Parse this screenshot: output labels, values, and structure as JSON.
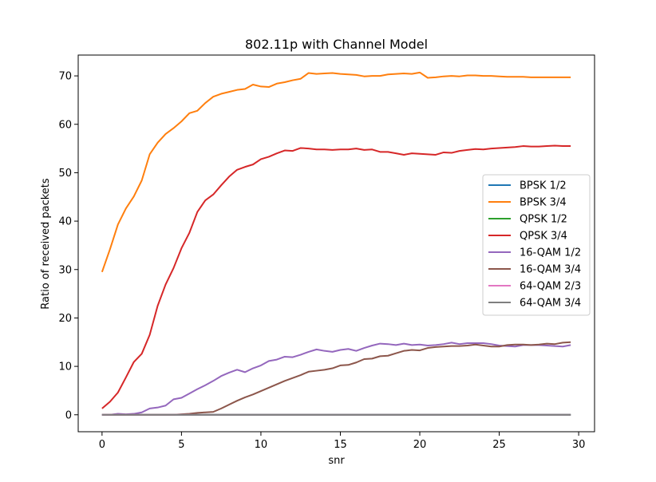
{
  "chart_data": {
    "type": "line",
    "title": "802.11p with Channel Model",
    "xlabel": "snr",
    "ylabel": "Ratio of received packets",
    "xlim": [
      -1.5,
      31
    ],
    "ylim": [
      -3.5,
      74.3
    ],
    "xticks": [
      0,
      5,
      10,
      15,
      20,
      25,
      30
    ],
    "yticks": [
      0,
      10,
      20,
      30,
      40,
      50,
      60,
      70
    ],
    "grid": false,
    "legend_position": "center-right",
    "x": [
      0,
      0.5,
      1,
      1.5,
      2,
      2.5,
      3,
      3.5,
      4,
      4.5,
      5,
      5.5,
      6,
      6.5,
      7,
      7.5,
      8,
      8.5,
      9,
      9.5,
      10,
      10.5,
      11,
      11.5,
      12,
      12.5,
      13,
      13.5,
      14,
      14.5,
      15,
      15.5,
      16,
      16.5,
      17,
      17.5,
      18,
      18.5,
      19,
      19.5,
      20,
      20.5,
      21,
      21.5,
      22,
      22.5,
      23,
      23.5,
      24,
      24.5,
      25,
      25.5,
      26,
      26.5,
      27,
      27.5,
      28,
      28.5,
      29,
      29.5
    ],
    "series": [
      {
        "name": "BPSK 1/2",
        "color": "#1f77b4",
        "values": [
          0,
          0,
          0,
          0,
          0,
          0,
          0,
          0,
          0,
          0,
          0,
          0,
          0,
          0,
          0,
          0,
          0,
          0,
          0,
          0,
          0,
          0,
          0,
          0,
          0,
          0,
          0,
          0,
          0,
          0,
          0,
          0,
          0,
          0,
          0,
          0,
          0,
          0,
          0,
          0,
          0,
          0,
          0,
          0,
          0,
          0,
          0,
          0,
          0,
          0,
          0,
          0,
          0,
          0,
          0,
          0,
          0,
          0,
          0,
          0
        ]
      },
      {
        "name": "BPSK 3/4",
        "color": "#ff7f0e",
        "values": [
          29.5,
          34.2,
          39.3,
          42.6,
          45.1,
          48.4,
          53.8,
          56.2,
          58.0,
          59.2,
          60.6,
          62.3,
          62.8,
          64.4,
          65.7,
          66.3,
          66.7,
          67.1,
          67.3,
          68.2,
          67.8,
          67.7,
          68.4,
          68.7,
          69.1,
          69.4,
          70.6,
          70.4,
          70.5,
          70.6,
          70.4,
          70.3,
          70.2,
          69.9,
          70.0,
          70.0,
          70.3,
          70.4,
          70.5,
          70.4,
          70.7,
          69.6,
          69.7,
          69.9,
          70.0,
          69.9,
          70.1,
          70.1,
          70.0,
          70.0,
          69.9,
          69.8,
          69.8,
          69.8,
          69.7,
          69.7,
          69.7,
          69.7,
          69.7,
          69.7
        ]
      },
      {
        "name": "QPSK 1/2",
        "color": "#2ca02c",
        "values": [
          0,
          0,
          0,
          0,
          0,
          0,
          0,
          0,
          0,
          0,
          0,
          0,
          0,
          0,
          0,
          0,
          0,
          0,
          0,
          0,
          0,
          0,
          0,
          0,
          0,
          0,
          0,
          0,
          0,
          0,
          0,
          0,
          0,
          0,
          0,
          0,
          0,
          0,
          0,
          0,
          0,
          0,
          0,
          0,
          0,
          0,
          0,
          0,
          0,
          0,
          0,
          0,
          0,
          0,
          0,
          0,
          0,
          0,
          0,
          0
        ]
      },
      {
        "name": "QPSK 3/4",
        "color": "#d62728",
        "values": [
          1.3,
          2.7,
          4.6,
          7.7,
          10.9,
          12.6,
          16.5,
          22.5,
          26.9,
          30.3,
          34.4,
          37.6,
          41.9,
          44.3,
          45.5,
          47.4,
          49.2,
          50.6,
          51.2,
          51.7,
          52.8,
          53.3,
          54.0,
          54.6,
          54.5,
          55.1,
          55.0,
          54.8,
          54.8,
          54.7,
          54.8,
          54.8,
          55.0,
          54.7,
          54.8,
          54.3,
          54.3,
          54.0,
          53.7,
          54.0,
          53.9,
          53.8,
          53.7,
          54.2,
          54.1,
          54.5,
          54.7,
          54.9,
          54.8,
          55.0,
          55.1,
          55.2,
          55.3,
          55.5,
          55.4,
          55.4,
          55.5,
          55.6,
          55.5,
          55.5
        ]
      },
      {
        "name": "16-QAM 1/2",
        "color": "#9467bd",
        "values": [
          0,
          0,
          0.2,
          0.1,
          0.2,
          0.5,
          1.3,
          1.5,
          1.9,
          3.2,
          3.5,
          4.4,
          5.3,
          6.1,
          7.0,
          8.0,
          8.7,
          9.3,
          8.8,
          9.6,
          10.2,
          11.1,
          11.4,
          12.0,
          11.9,
          12.4,
          13.0,
          13.5,
          13.2,
          13.0,
          13.4,
          13.6,
          13.2,
          13.8,
          14.3,
          14.7,
          14.6,
          14.4,
          14.7,
          14.4,
          14.5,
          14.3,
          14.4,
          14.6,
          14.9,
          14.6,
          14.8,
          14.8,
          14.8,
          14.6,
          14.3,
          14.2,
          14.1,
          14.4,
          14.4,
          14.4,
          14.3,
          14.2,
          14.1,
          14.4
        ]
      },
      {
        "name": "16-QAM 3/4",
        "color": "#8c564b",
        "values": [
          0,
          0,
          0,
          0,
          0,
          0,
          0,
          0,
          0,
          0,
          0.1,
          0.2,
          0.4,
          0.5,
          0.6,
          1.3,
          2.1,
          2.9,
          3.6,
          4.2,
          4.9,
          5.6,
          6.3,
          7.0,
          7.6,
          8.2,
          8.9,
          9.1,
          9.3,
          9.6,
          10.2,
          10.3,
          10.8,
          11.5,
          11.6,
          12.1,
          12.2,
          12.7,
          13.2,
          13.4,
          13.3,
          13.8,
          14.0,
          14.1,
          14.2,
          14.2,
          14.3,
          14.5,
          14.3,
          14.1,
          14.1,
          14.4,
          14.5,
          14.5,
          14.4,
          14.5,
          14.7,
          14.6,
          14.9,
          15.0
        ]
      },
      {
        "name": "64-QAM 2/3",
        "color": "#e377c2",
        "values": [
          0,
          0,
          0,
          0,
          0,
          0,
          0,
          0,
          0,
          0,
          0,
          0,
          0,
          0,
          0,
          0,
          0,
          0,
          0,
          0,
          0,
          0,
          0,
          0,
          0,
          0,
          0,
          0,
          0,
          0,
          0,
          0,
          0,
          0,
          0,
          0,
          0,
          0,
          0,
          0,
          0,
          0,
          0,
          0,
          0,
          0,
          0,
          0,
          0,
          0,
          0,
          0,
          0,
          0,
          0,
          0,
          0,
          0,
          0,
          0
        ]
      },
      {
        "name": "64-QAM 3/4",
        "color": "#7f7f7f",
        "values": [
          0,
          0,
          0,
          0,
          0,
          0,
          0,
          0,
          0,
          0,
          0,
          0,
          0,
          0,
          0,
          0,
          0,
          0,
          0,
          0,
          0,
          0,
          0,
          0,
          0,
          0,
          0,
          0,
          0,
          0,
          0,
          0,
          0,
          0,
          0,
          0,
          0,
          0,
          0,
          0,
          0,
          0,
          0,
          0,
          0,
          0,
          0,
          0,
          0,
          0,
          0,
          0,
          0,
          0,
          0,
          0,
          0,
          0,
          0,
          0
        ]
      }
    ]
  }
}
